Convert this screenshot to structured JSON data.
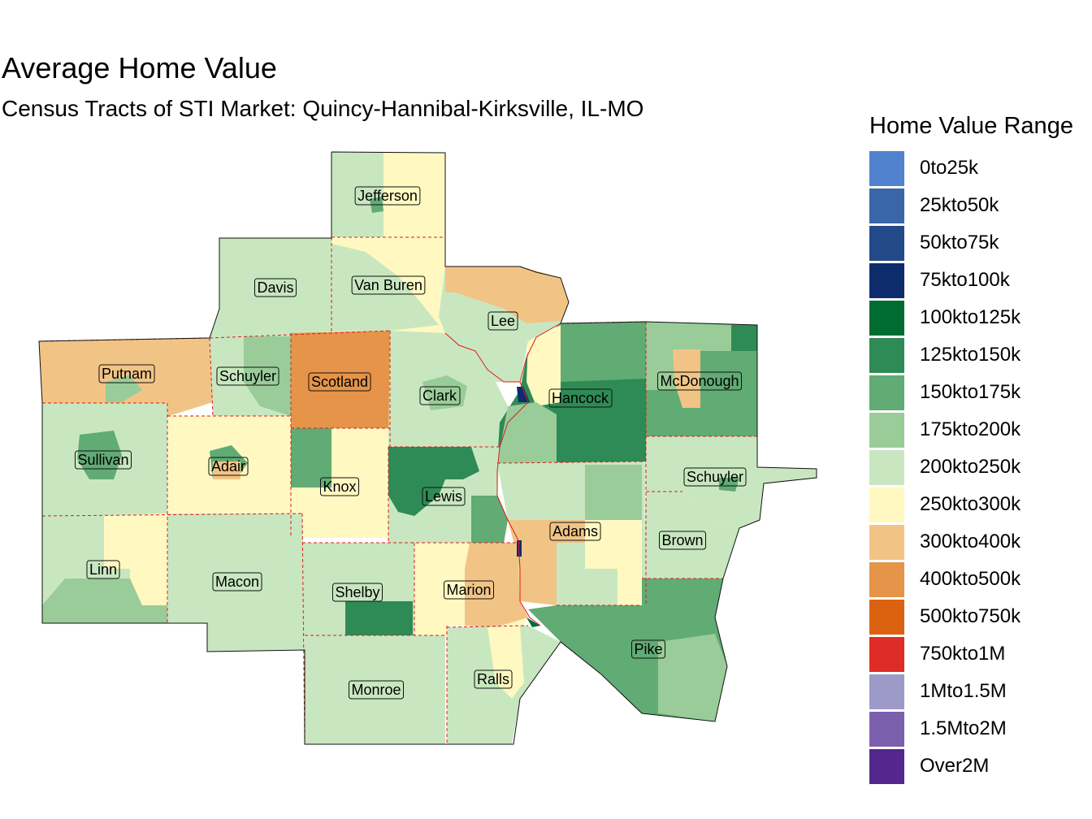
{
  "title": "Average Home Value",
  "subtitle": "Census Tracts of STI Market: Quincy-Hannibal-Kirksville, IL-MO",
  "legend": {
    "title": "Home Value Range",
    "items": [
      {
        "label": "0to25k",
        "color": "#5082cd"
      },
      {
        "label": "25kto50k",
        "color": "#3a66a8"
      },
      {
        "label": "50kto75k",
        "color": "#224a88"
      },
      {
        "label": "75kto100k",
        "color": "#0d2c6b"
      },
      {
        "label": "100kto125k",
        "color": "#006c32"
      },
      {
        "label": "125kto150k",
        "color": "#2e8b55"
      },
      {
        "label": "150kto175k",
        "color": "#61ab74"
      },
      {
        "label": "175kto200k",
        "color": "#99cc99"
      },
      {
        "label": "200kto250k",
        "color": "#c8e7c0"
      },
      {
        "label": "250kto300k",
        "color": "#fff8c0"
      },
      {
        "label": "300kto400k",
        "color": "#f1c486"
      },
      {
        "label": "400kto500k",
        "color": "#e5944a"
      },
      {
        "label": "500kto750k",
        "color": "#dc6212"
      },
      {
        "label": "750kto1M",
        "color": "#de2d26"
      },
      {
        "label": "1Mto1.5M",
        "color": "#9e9ac8"
      },
      {
        "label": "1.5Mto2M",
        "color": "#7b60ad"
      },
      {
        "label": "Over2M",
        "color": "#54278f"
      }
    ]
  },
  "counties": [
    {
      "name": "Jefferson",
      "range": "250kto300k"
    },
    {
      "name": "Davis",
      "range": "200kto250k"
    },
    {
      "name": "Van Buren",
      "range": "250kto300k"
    },
    {
      "name": "Lee",
      "range": "200kto250k"
    },
    {
      "name": "Putnam",
      "range": "300kto400k"
    },
    {
      "name": "Schuyler",
      "range": "200kto250k"
    },
    {
      "name": "Scotland",
      "range": "400kto500k"
    },
    {
      "name": "Clark",
      "range": "200kto250k"
    },
    {
      "name": "Hancock",
      "range": "125kto150k"
    },
    {
      "name": "McDonough",
      "range": "150kto175k"
    },
    {
      "name": "Sullivan",
      "range": "200kto250k"
    },
    {
      "name": "Adair",
      "range": "250kto300k"
    },
    {
      "name": "Knox",
      "range": "250kto300k"
    },
    {
      "name": "Lewis",
      "range": "200kto250k"
    },
    {
      "name": "Schuyler",
      "range": "200kto250k"
    },
    {
      "name": "Adams",
      "range": "200kto250k"
    },
    {
      "name": "Brown",
      "range": "200kto250k"
    },
    {
      "name": "Linn",
      "range": "200kto250k"
    },
    {
      "name": "Macon",
      "range": "200kto250k"
    },
    {
      "name": "Shelby",
      "range": "200kto250k"
    },
    {
      "name": "Marion",
      "range": "250kto300k"
    },
    {
      "name": "Pike",
      "range": "150kto175k"
    },
    {
      "name": "Ralls",
      "range": "200kto250k"
    },
    {
      "name": "Monroe",
      "range": "200kto250k"
    }
  ]
}
